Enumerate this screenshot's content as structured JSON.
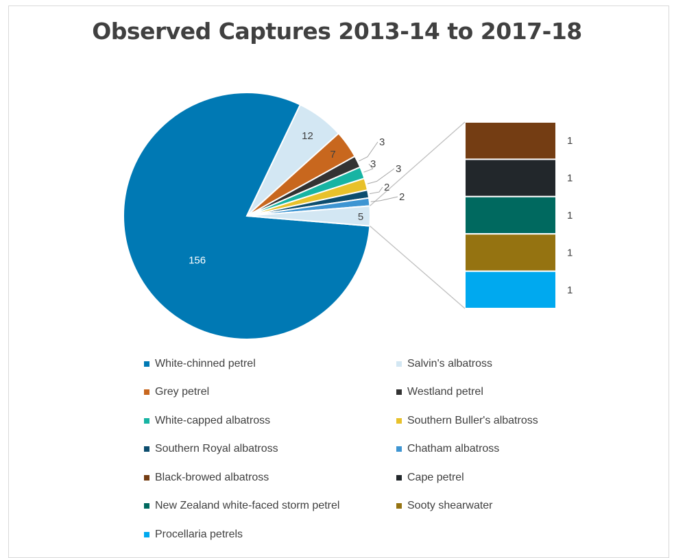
{
  "chart_data": {
    "type": "pie",
    "subtype": "bar-of-pie",
    "title": "Observed Captures 2013-14 to 2017-18",
    "series": [
      {
        "name": "White-chinned petrel",
        "value": 156,
        "color": "#0079B4"
      },
      {
        "name": "Salvin's albatross",
        "value": 12,
        "color": "#D3E7F3"
      },
      {
        "name": "Grey petrel",
        "value": 7,
        "color": "#C8671E"
      },
      {
        "name": "Westland petrel",
        "value": 3,
        "color": "#333333"
      },
      {
        "name": "White-capped albatross",
        "value": 3,
        "color": "#17B4A3"
      },
      {
        "name": "Southern Buller's albatross",
        "value": 3,
        "color": "#E8C12A"
      },
      {
        "name": "Southern Royal albatross",
        "value": 2,
        "color": "#0C4D6E"
      },
      {
        "name": "Chatham albatross",
        "value": 2,
        "color": "#3E95D2"
      },
      {
        "name": "Black-browed albatross",
        "value": 1,
        "color": "#743D13"
      },
      {
        "name": "Cape petrel",
        "value": 1,
        "color": "#22272B"
      },
      {
        "name": "New Zealand white-faced storm petrel",
        "value": 1,
        "color": "#00695F"
      },
      {
        "name": "Sooty shearwater",
        "value": 1,
        "color": "#957311"
      },
      {
        "name": "Procellaria petrels",
        "value": 1,
        "color": "#00A9EF"
      }
    ],
    "pie_labels": [
      "156",
      "12",
      "7",
      "3",
      "3",
      "3",
      "2",
      "2",
      "5"
    ],
    "other_label": "5",
    "bar_labels": [
      "1",
      "1",
      "1",
      "1",
      "1"
    ],
    "legend_position": "bottom"
  }
}
